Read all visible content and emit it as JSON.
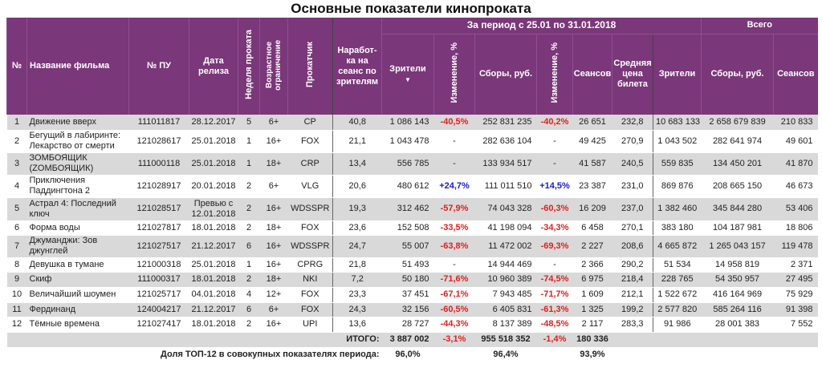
{
  "title": "Основные показатели кинопроката",
  "header": {
    "num": "№",
    "film": "Название фильма",
    "pu": "№ ПУ",
    "release": "Дата релиза",
    "week": "Неделя проката",
    "age": "Возрастное ограничение",
    "distributor": "Прокатчик",
    "per_session": "Наработ-ка на сеанс по зрителям",
    "period": "За период с 25.01 по 31.01.2018",
    "viewers": "Зрители",
    "sort_arrow": "▼",
    "change": "Изменение, %",
    "gross": "Сборы, руб.",
    "sessions": "Сеансов",
    "avg_price": "Средняя цена билета",
    "total": "Всего",
    "total_viewers": "Зрители",
    "total_gross": "Сборы, руб.",
    "total_sessions": "Сеансов"
  },
  "colors": {
    "header_bg": "#7a3779",
    "negative": "#e02020",
    "positive": "#1a1ad0",
    "stripe": "#d9d9d9"
  },
  "rows": [
    {
      "n": "1",
      "film": "Движение вверх",
      "pu": "111011817",
      "release": "28.12.2017",
      "week": "5",
      "age": "6+",
      "dist": "CP",
      "per_session": "40,8",
      "viewers": "1 086 143",
      "v_change": "-40,5%",
      "gross": "252 831 235",
      "g_change": "-40,2%",
      "sessions": "26 651",
      "avg": "232,8",
      "t_viewers": "10 683 133",
      "t_gross": "2 658 679 839",
      "t_sessions": "210 833"
    },
    {
      "n": "2",
      "film": "Бегущий в лабиринте: Лекарство от смерти",
      "pu": "121028617",
      "release": "25.01.2018",
      "week": "1",
      "age": "16+",
      "dist": "FOX",
      "per_session": "21,1",
      "viewers": "1 043 478",
      "v_change": "-",
      "gross": "282 636 104",
      "g_change": "-",
      "sessions": "49 425",
      "avg": "270,9",
      "t_viewers": "1 043 502",
      "t_gross": "282 641 974",
      "t_sessions": "49 601"
    },
    {
      "n": "3",
      "film": "ЗОМБОЯЩИК (ZОМБОЯЩИК)",
      "pu": "111000118",
      "release": "25.01.2018",
      "week": "1",
      "age": "18+",
      "dist": "CRP",
      "per_session": "13,4",
      "viewers": "556 785",
      "v_change": "-",
      "gross": "133 934 517",
      "g_change": "-",
      "sessions": "41 587",
      "avg": "240,5",
      "t_viewers": "559 835",
      "t_gross": "134 450 201",
      "t_sessions": "41 870"
    },
    {
      "n": "4",
      "film": "Приключения Паддингтона 2",
      "pu": "121028917",
      "release": "20.01.2018",
      "week": "2",
      "age": "6+",
      "dist": "VLG",
      "per_session": "20,6",
      "viewers": "480 612",
      "v_change": "+24,7%",
      "gross": "111 011 510",
      "g_change": "+14,5%",
      "sessions": "23 387",
      "avg": "231,0",
      "t_viewers": "869 876",
      "t_gross": "208 665 150",
      "t_sessions": "46 673"
    },
    {
      "n": "5",
      "film": "Астрал 4: Последний ключ",
      "pu": "121028517",
      "release": "Превью с 12.01.2018",
      "week": "2",
      "age": "16+",
      "dist": "WDSSPR",
      "per_session": "19,3",
      "viewers": "312 462",
      "v_change": "-57,9%",
      "gross": "74 043 328",
      "g_change": "-60,3%",
      "sessions": "16 209",
      "avg": "237,0",
      "t_viewers": "1 382 460",
      "t_gross": "345 844 280",
      "t_sessions": "53 406"
    },
    {
      "n": "6",
      "film": "Форма воды",
      "pu": "121027817",
      "release": "18.01.2018",
      "week": "2",
      "age": "18+",
      "dist": "FOX",
      "per_session": "23,6",
      "viewers": "152 508",
      "v_change": "-33,5%",
      "gross": "41 198 094",
      "g_change": "-34,3%",
      "sessions": "6 458",
      "avg": "270,1",
      "t_viewers": "383 180",
      "t_gross": "104 187 981",
      "t_sessions": "18 806"
    },
    {
      "n": "7",
      "film": "Джуманджи: Зов джунглей",
      "pu": "121027517",
      "release": "21.12.2017",
      "week": "6",
      "age": "16+",
      "dist": "WDSSPR",
      "per_session": "24,7",
      "viewers": "55 007",
      "v_change": "-63,8%",
      "gross": "11 472 002",
      "g_change": "-69,3%",
      "sessions": "2 227",
      "avg": "208,6",
      "t_viewers": "4 665 872",
      "t_gross": "1 265 043 157",
      "t_sessions": "119 478"
    },
    {
      "n": "8",
      "film": "Девушка в тумане",
      "pu": "121000318",
      "release": "25.01.2018",
      "week": "1",
      "age": "16+",
      "dist": "CPRG",
      "per_session": "21,8",
      "viewers": "51 493",
      "v_change": "-",
      "gross": "14 944 469",
      "g_change": "-",
      "sessions": "2 366",
      "avg": "290,2",
      "t_viewers": "51 534",
      "t_gross": "14 958 819",
      "t_sessions": "2 371"
    },
    {
      "n": "9",
      "film": "Скиф",
      "pu": "111000317",
      "release": "18.01.2018",
      "week": "2",
      "age": "18+",
      "dist": "NKI",
      "per_session": "7,2",
      "viewers": "50 180",
      "v_change": "-71,6%",
      "gross": "10 960 389",
      "g_change": "-74,5%",
      "sessions": "6 975",
      "avg": "218,4",
      "t_viewers": "228 765",
      "t_gross": "54 350 957",
      "t_sessions": "27 495"
    },
    {
      "n": "10",
      "film": "Величайший шоумен",
      "pu": "121025717",
      "release": "04.01.2018",
      "week": "4",
      "age": "12+",
      "dist": "FOX",
      "per_session": "23,3",
      "viewers": "37 451",
      "v_change": "-67,1%",
      "gross": "7 943 485",
      "g_change": "-71,7%",
      "sessions": "1 609",
      "avg": "212,1",
      "t_viewers": "1 522 672",
      "t_gross": "416 164 969",
      "t_sessions": "75 929"
    },
    {
      "n": "11",
      "film": "Фердинанд",
      "pu": "124004217",
      "release": "21.12.2017",
      "week": "6",
      "age": "6+",
      "dist": "FOX",
      "per_session": "24,3",
      "viewers": "32 156",
      "v_change": "-60,5%",
      "gross": "6 405 831",
      "g_change": "-61,3%",
      "sessions": "1 325",
      "avg": "199,2",
      "t_viewers": "2 577 820",
      "t_gross": "585 264 116",
      "t_sessions": "91 398"
    },
    {
      "n": "12",
      "film": "Тёмные времена",
      "pu": "121027417",
      "release": "18.01.2018",
      "week": "2",
      "age": "16+",
      "dist": "UPI",
      "per_session": "13,6",
      "viewers": "28 727",
      "v_change": "-44,3%",
      "gross": "8 137 389",
      "g_change": "-48,5%",
      "sessions": "2 117",
      "avg": "283,3",
      "t_viewers": "91 986",
      "t_gross": "28 001 383",
      "t_sessions": "7 552"
    }
  ],
  "total": {
    "label": "ИТОГО:",
    "viewers": "3 887 002",
    "v_change": "-3,1%",
    "gross": "955 518 352",
    "g_change": "-1,4%",
    "sessions": "180 336"
  },
  "share": {
    "label": "Доля ТОП-12 в совокупных показателях периода:",
    "viewers": "96,0%",
    "gross": "96,4%",
    "sessions": "93,9%"
  }
}
